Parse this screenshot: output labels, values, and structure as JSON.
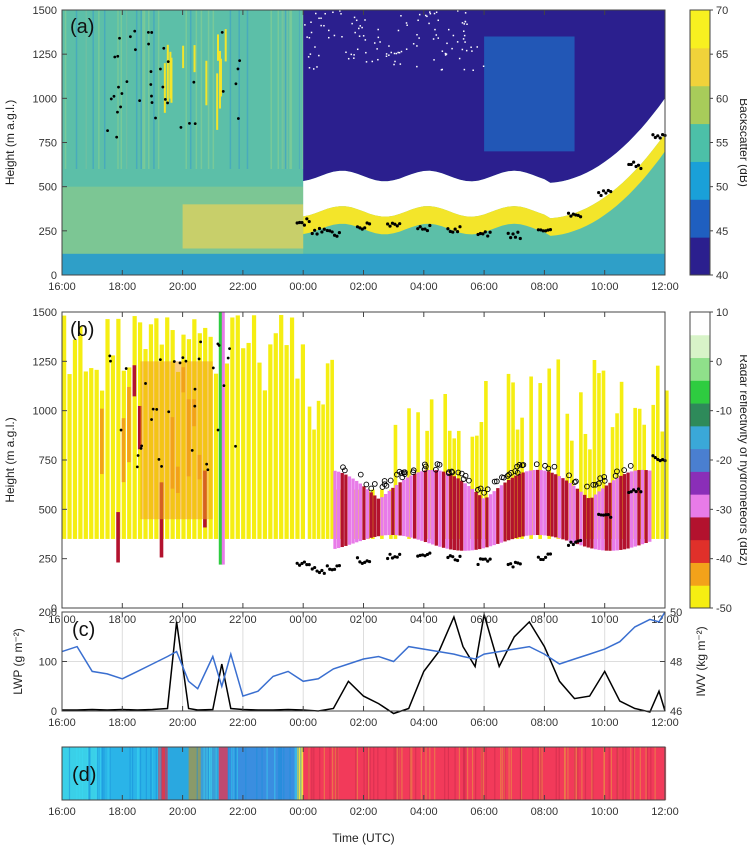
{
  "chart_data": [
    {
      "panel": "(a)",
      "type": "heatmap",
      "ylabel": "Height (m a.g.l.)",
      "yticks": [
        "0",
        "250",
        "500",
        "750",
        "1000",
        "1250",
        "1500"
      ],
      "ylim": [
        0,
        1500
      ],
      "xticks": [
        "16:00",
        "18:00",
        "20:00",
        "22:00",
        "00:00",
        "02:00",
        "04:00",
        "06:00",
        "08:00",
        "10:00",
        "12:00"
      ],
      "xlim_hours": [
        0,
        20
      ],
      "colorbar": {
        "label": "Backscatter (dB)",
        "ticks": [
          "40",
          "45",
          "50",
          "55",
          "60",
          "65",
          "70"
        ],
        "range": [
          40,
          70
        ],
        "colors": [
          "#2b1f8e",
          "#1f5fc0",
          "#1aa0d8",
          "#4cc0a8",
          "#a8cc5a",
          "#f0d23a",
          "#f8f020"
        ]
      },
      "cloud_base_points": [
        {
          "hour": 8.0,
          "height": 300
        },
        {
          "hour": 8.5,
          "height": 250
        },
        {
          "hour": 9.0,
          "height": 235
        },
        {
          "hour": 10.0,
          "height": 275
        },
        {
          "hour": 11.0,
          "height": 290
        },
        {
          "hour": 12.0,
          "height": 270
        },
        {
          "hour": 13.0,
          "height": 255
        },
        {
          "hour": 14.0,
          "height": 240
        },
        {
          "hour": 15.0,
          "height": 225
        },
        {
          "hour": 16.0,
          "height": 260
        },
        {
          "hour": 17.0,
          "height": 330
        },
        {
          "hour": 18.0,
          "height": 460
        },
        {
          "hour": 19.0,
          "height": 620
        },
        {
          "hour": 19.8,
          "height": 780
        }
      ]
    },
    {
      "panel": "(b)",
      "type": "heatmap",
      "ylabel": "Height (m a.g.l.)",
      "yticks": [
        "0",
        "250",
        "500",
        "750",
        "1000",
        "1250",
        "1500"
      ],
      "ylim": [
        0,
        1500
      ],
      "xticks": [
        "16:00",
        "18:00",
        "20:00",
        "22:00",
        "00:00",
        "02:00",
        "04:00",
        "06:00",
        "08:00",
        "10:00",
        "12:00"
      ],
      "xlim_hours": [
        0,
        20
      ],
      "colorbar": {
        "label": "Radar reflectivity of hydrometeors (dBz)",
        "ticks": [
          "-50",
          "-40",
          "-30",
          "-20",
          "-10",
          "0",
          "10"
        ],
        "range": [
          -50,
          10
        ],
        "colors": [
          "#f5ee12",
          "#f2a21a",
          "#e0302a",
          "#b3122e",
          "#e87be8",
          "#8a2eb8",
          "#4a7fd0",
          "#3aa8d8",
          "#2e8a5a",
          "#2ecc40",
          "#8fe08a",
          "#d8f4c8",
          "#ffffff"
        ]
      },
      "cloud_base_points": [
        {
          "hour": 8.0,
          "height": 220
        },
        {
          "hour": 8.5,
          "height": 190
        },
        {
          "hour": 9.0,
          "height": 200
        },
        {
          "hour": 10.0,
          "height": 240
        },
        {
          "hour": 11.0,
          "height": 260
        },
        {
          "hour": 12.0,
          "height": 265
        },
        {
          "hour": 13.0,
          "height": 250
        },
        {
          "hour": 14.0,
          "height": 235
        },
        {
          "hour": 15.0,
          "height": 220
        },
        {
          "hour": 16.0,
          "height": 260
        },
        {
          "hour": 17.0,
          "height": 330
        },
        {
          "hour": 18.0,
          "height": 460
        },
        {
          "hour": 19.0,
          "height": 600
        },
        {
          "hour": 19.8,
          "height": 760
        }
      ]
    },
    {
      "panel": "(c)",
      "type": "line",
      "ylabel": "LWP (g m⁻²)",
      "ylabel2": "IWV (kg m⁻²)",
      "yticks": [
        "0",
        "100",
        "200"
      ],
      "ylim": [
        0,
        200
      ],
      "yticks2": [
        "46",
        "48",
        "50"
      ],
      "ylim2": [
        46,
        50
      ],
      "xticks": [
        "16:00",
        "18:00",
        "20:00",
        "22:00",
        "00:00",
        "02:00",
        "04:00",
        "06:00",
        "08:00",
        "10:00",
        "12:00"
      ],
      "x_hours": [
        0,
        0.5,
        1,
        1.5,
        2,
        2.5,
        3,
        3.5,
        3.8,
        4.2,
        4.5,
        5,
        5.3,
        5.6,
        6,
        6.5,
        7,
        7.5,
        8,
        8.5,
        9,
        9.5,
        10,
        10.5,
        11,
        11.5,
        12,
        12.5,
        13,
        13.3,
        13.7,
        14,
        14.5,
        15,
        15.5,
        16,
        16.5,
        17,
        17.5,
        18,
        18.5,
        19,
        19.5,
        19.8,
        20
      ],
      "series": [
        {
          "name": "LWP",
          "axis": "left",
          "color": "#000000",
          "values": [
            2,
            2,
            3,
            2,
            3,
            2,
            3,
            5,
            180,
            5,
            2,
            3,
            95,
            5,
            3,
            2,
            2,
            3,
            2,
            0,
            5,
            60,
            30,
            15,
            -5,
            5,
            80,
            120,
            190,
            130,
            90,
            195,
            90,
            150,
            180,
            130,
            60,
            25,
            30,
            80,
            20,
            5,
            -2,
            40,
            0
          ]
        },
        {
          "name": "IWV",
          "axis": "right",
          "color": "#3a6fd0",
          "values": [
            48.4,
            48.6,
            47.6,
            47.5,
            47.3,
            47.6,
            47.9,
            48.2,
            48.4,
            47.2,
            46.9,
            48.2,
            47.0,
            48.3,
            46.6,
            46.8,
            47.4,
            47.6,
            47.2,
            47.3,
            47.7,
            47.9,
            48.1,
            48.2,
            48.0,
            48.6,
            48.5,
            48.4,
            48.3,
            48.2,
            48.1,
            48.3,
            48.4,
            48.5,
            48.6,
            48.3,
            47.9,
            48.1,
            48.3,
            48.5,
            48.8,
            49.4,
            49.7,
            49.6,
            50.0
          ]
        }
      ]
    },
    {
      "panel": "(d)",
      "type": "heatmap",
      "xlabel": "Time (UTC)",
      "xticks": [
        "16:00",
        "18:00",
        "20:00",
        "22:00",
        "00:00",
        "02:00",
        "04:00",
        "06:00",
        "08:00",
        "10:00",
        "12:00"
      ],
      "xlim_hours": [
        0,
        20
      ],
      "segments": [
        {
          "from": 0.0,
          "to": 1.2,
          "color": "#3ad0e8"
        },
        {
          "from": 1.2,
          "to": 3.2,
          "color": "#2ab4e8"
        },
        {
          "from": 3.2,
          "to": 3.5,
          "color": "#d63a52"
        },
        {
          "from": 3.5,
          "to": 4.2,
          "color": "#2aa8e0"
        },
        {
          "from": 4.2,
          "to": 4.6,
          "color": "#8a9a6a"
        },
        {
          "from": 4.6,
          "to": 5.2,
          "color": "#3a9ed8"
        },
        {
          "from": 5.2,
          "to": 5.5,
          "color": "#c04a70"
        },
        {
          "from": 5.5,
          "to": 7.8,
          "color": "#3a8ee0"
        },
        {
          "from": 7.8,
          "to": 8.0,
          "color": "#f0e040"
        },
        {
          "from": 8.0,
          "to": 20.0,
          "color": "#f23a5a"
        }
      ]
    }
  ],
  "panel_labels": [
    "(a)",
    "(b)",
    "(c)",
    "(d)"
  ]
}
